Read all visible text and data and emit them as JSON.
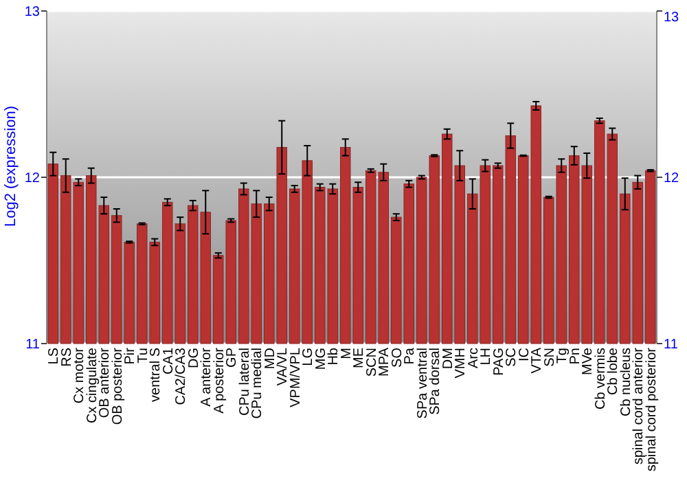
{
  "chart_data": {
    "type": "bar",
    "ylabel": "Log2 (expression)",
    "categories": [
      "LS",
      "RS",
      "Cx motor",
      "Cx cingulate",
      "OB anterior",
      "OB posterior",
      "Pir",
      "Tu",
      "ventral S",
      "CA1",
      "CA2/CA3",
      "DG",
      "A anterior",
      "A posterior",
      "GP",
      "CPu lateral",
      "CPu medial",
      "MD",
      "VA/VL",
      "VPM/VPL",
      "LG",
      "MG",
      "Hb",
      "M",
      "ME",
      "SCN",
      "MPA",
      "SO",
      "Pa",
      "SPa ventral",
      "SPa dorsal",
      "DM",
      "VMH",
      "Arc",
      "LH",
      "PAG",
      "SC",
      "IC",
      "VTA",
      "SN",
      "Tg",
      "Pn",
      "MVe",
      "Cb vermis",
      "Cb lobe",
      "Cb nucleus",
      "spinal cord anterior",
      "spinal cord posterior"
    ],
    "values": [
      12.08,
      12.01,
      11.97,
      12.01,
      11.83,
      11.77,
      11.61,
      11.72,
      11.61,
      11.85,
      11.72,
      11.83,
      11.79,
      11.53,
      11.74,
      11.93,
      11.84,
      11.84,
      12.18,
      11.93,
      12.1,
      11.94,
      11.93,
      12.18,
      11.94,
      12.04,
      12.03,
      11.76,
      11.96,
      12.0,
      12.13,
      12.26,
      12.07,
      11.9,
      12.07,
      12.07,
      12.25,
      12.13,
      12.43,
      11.88,
      12.07,
      12.13,
      12.07,
      12.34,
      12.26,
      11.9,
      11.97,
      12.04
    ],
    "errors": [
      0.07,
      0.1,
      0.02,
      0.045,
      0.05,
      0.04,
      0.005,
      0.005,
      0.02,
      0.02,
      0.04,
      0.03,
      0.13,
      0.015,
      0.01,
      0.035,
      0.08,
      0.04,
      0.16,
      0.02,
      0.09,
      0.02,
      0.03,
      0.05,
      0.03,
      0.01,
      0.05,
      0.02,
      0.02,
      0.01,
      0.005,
      0.03,
      0.09,
      0.09,
      0.035,
      0.015,
      0.075,
      0.003,
      0.025,
      0.005,
      0.04,
      0.055,
      0.075,
      0.015,
      0.035,
      0.095,
      0.04,
      0.005
    ],
    "color": "#b83232",
    "ylim": [
      11,
      13
    ],
    "yticks": [
      11,
      12,
      13
    ],
    "y2lim": [
      11,
      13
    ],
    "y2ticks": [
      11,
      12,
      13
    ],
    "grid": "y"
  }
}
